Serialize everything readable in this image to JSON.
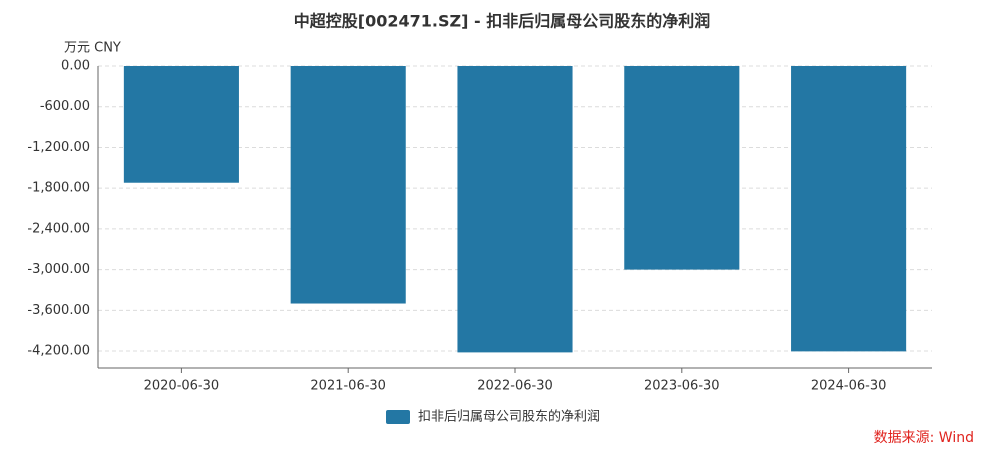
{
  "chart_data": {
    "type": "bar",
    "title": "中超控股[002471.SZ] - 扣非后归属母公司股东的净利润",
    "y_unit": "万元  CNY",
    "source": "数据来源: Wind",
    "categories": [
      "2020-06-30",
      "2021-06-30",
      "2022-06-30",
      "2023-06-30",
      "2024-06-30"
    ],
    "series": [
      {
        "name": "扣非后归属母公司股东的净利润",
        "color": "#2377a4",
        "values": [
          -1720,
          -3500,
          -4220,
          -3000,
          -4205
        ]
      }
    ],
    "ylim": [
      -4450,
      0
    ],
    "yticks": [
      {
        "value": 0,
        "label": "0.00"
      },
      {
        "value": -600,
        "label": "-600.00"
      },
      {
        "value": -1200,
        "label": "-1,200.00"
      },
      {
        "value": -1800,
        "label": "-1,800.00"
      },
      {
        "value": -2400,
        "label": "-2,400.00"
      },
      {
        "value": -3000,
        "label": "-3,000.00"
      },
      {
        "value": -3600,
        "label": "-3,600.00"
      },
      {
        "value": -4200,
        "label": "-4,200.00"
      }
    ],
    "grid": true
  }
}
